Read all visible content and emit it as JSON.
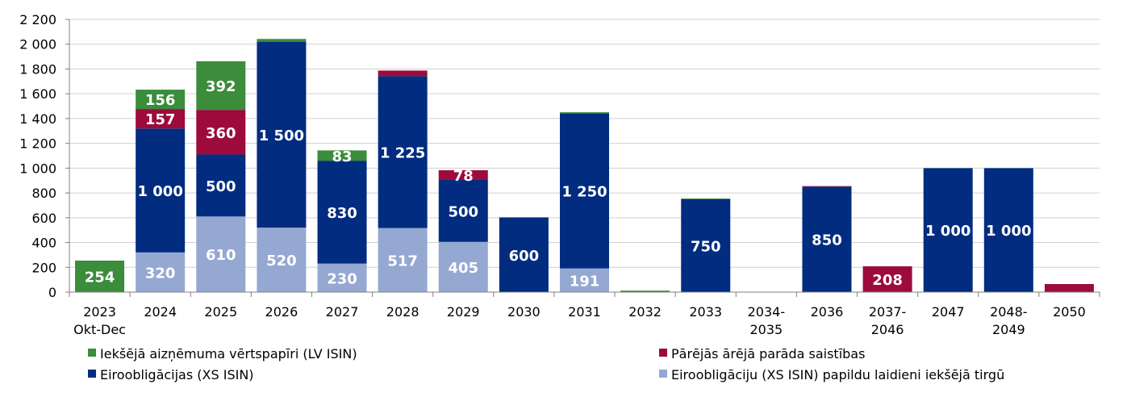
{
  "chart_data": {
    "type": "bar",
    "stacked": true,
    "categories": [
      [
        "2023",
        "Okt-Dec"
      ],
      [
        "2024"
      ],
      [
        "2025"
      ],
      [
        "2026"
      ],
      [
        "2027"
      ],
      [
        "2028"
      ],
      [
        "2029"
      ],
      [
        "2030"
      ],
      [
        "2031"
      ],
      [
        "2032"
      ],
      [
        "2033"
      ],
      [
        "2034-",
        "2035"
      ],
      [
        "2036"
      ],
      [
        "2037-",
        "2046"
      ],
      [
        "2047"
      ],
      [
        "2048-",
        "2049"
      ],
      [
        "2050"
      ]
    ],
    "ylim": [
      0,
      2200
    ],
    "yticks": [
      0,
      200,
      400,
      600,
      800,
      1000,
      1200,
      1400,
      1600,
      1800,
      2000,
      2200
    ],
    "ytick_labels": [
      "0",
      "200",
      "400",
      "600",
      "800",
      "1 000",
      "1 200",
      "1 400",
      "1 600",
      "1 800",
      "2 000",
      "2 200"
    ],
    "grid": true,
    "legend_position": "bottom",
    "series": [
      {
        "name": "Eiroobligāciju (XS ISIN) papildu laidieni iekšējā tirgū",
        "color": "#95A8D2",
        "values": [
          0,
          320,
          610,
          520,
          230,
          517,
          405,
          0,
          191,
          0,
          0,
          0,
          0,
          0,
          0,
          0,
          0
        ],
        "labels": [
          "",
          "320",
          "610",
          "520",
          "230",
          "517",
          "405",
          "",
          "191",
          "",
          "",
          "",
          "",
          "",
          "",
          "",
          ""
        ]
      },
      {
        "name": "Eiroobligācijas (XS ISIN)",
        "color": "#012C80",
        "values": [
          0,
          1000,
          500,
          1500,
          830,
          1225,
          500,
          600,
          1250,
          0,
          750,
          0,
          850,
          0,
          1000,
          1000,
          0
        ],
        "labels": [
          "",
          "1 000",
          "500",
          "1 500",
          "830",
          "1 225",
          "500",
          "600",
          "1 250",
          "",
          "750",
          "",
          "850",
          "",
          "1 000",
          "1 000",
          ""
        ]
      },
      {
        "name": "Pārējās ārējā parāda saistības",
        "color": "#9C0B3B",
        "values": [
          0,
          157,
          360,
          0,
          0,
          45,
          78,
          0,
          0,
          0,
          0,
          0,
          5,
          208,
          0,
          0,
          65
        ],
        "labels": [
          "",
          "157",
          "360",
          "",
          "",
          "",
          "78",
          "",
          "",
          "",
          "",
          "",
          "",
          "208",
          "",
          "",
          ""
        ]
      },
      {
        "name": "Iekšējā aizņēmuma vērtspapīri (LV ISIN)",
        "color": "#3B8C3B",
        "values": [
          254,
          156,
          392,
          22,
          83,
          0,
          0,
          5,
          10,
          12,
          5,
          3,
          0,
          0,
          0,
          0,
          0
        ],
        "labels": [
          "254",
          "156",
          "392",
          "",
          "83",
          "",
          "",
          "",
          "",
          "",
          "",
          "",
          "",
          "",
          "",
          "",
          ""
        ]
      }
    ],
    "legend_order": [
      3,
      2,
      1,
      0
    ]
  }
}
